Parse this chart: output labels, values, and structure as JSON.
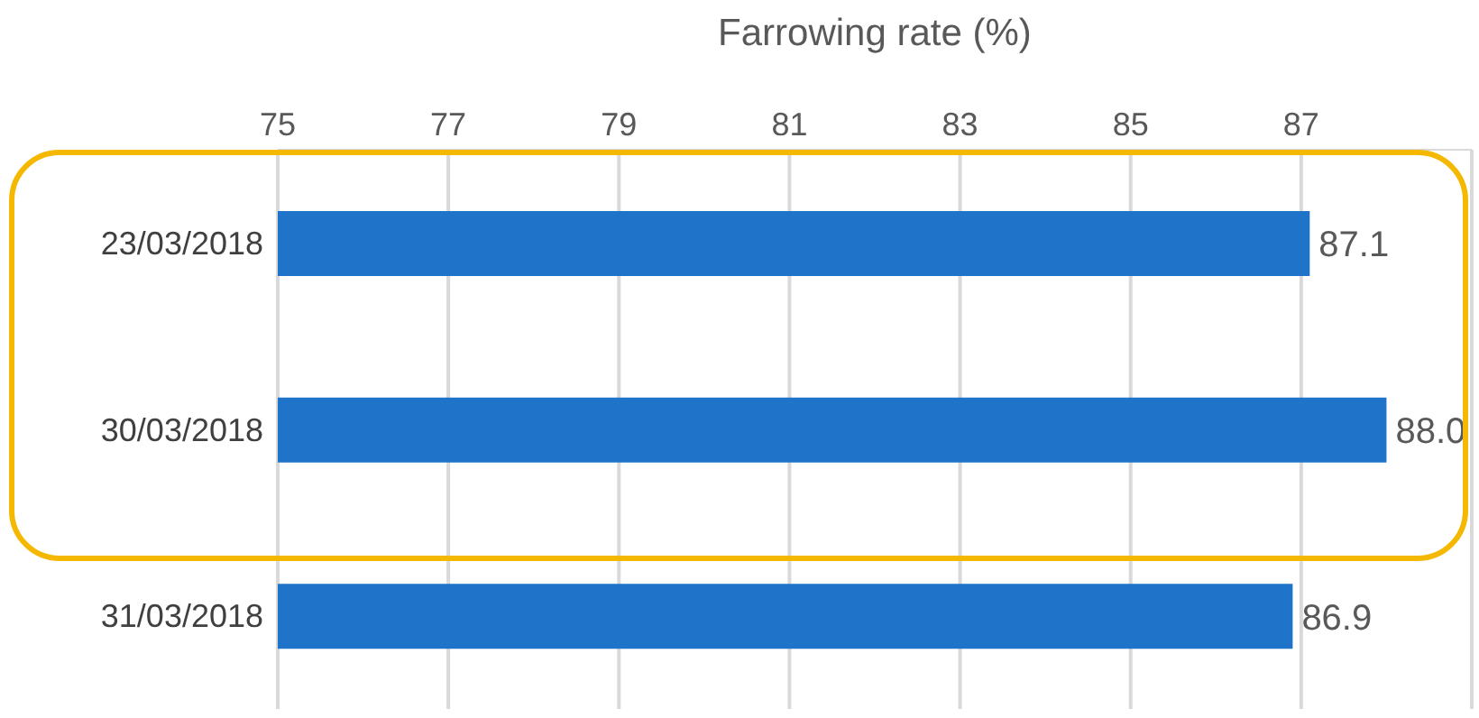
{
  "chart_data": {
    "type": "bar",
    "orientation": "horizontal",
    "xlabel": "Farrowing rate (%)",
    "categories": [
      "23/03/2018",
      "30/03/2018",
      "31/03/2018"
    ],
    "values": [
      87.1,
      88.0,
      86.9
    ],
    "color": "#1f74c9",
    "value_labels": [
      "87.1",
      "88.0",
      "86.9"
    ],
    "xlim": [
      75,
      89
    ],
    "xticks": [
      75,
      77,
      79,
      81,
      83,
      85,
      87
    ],
    "grid": "x",
    "legend": false
  }
}
